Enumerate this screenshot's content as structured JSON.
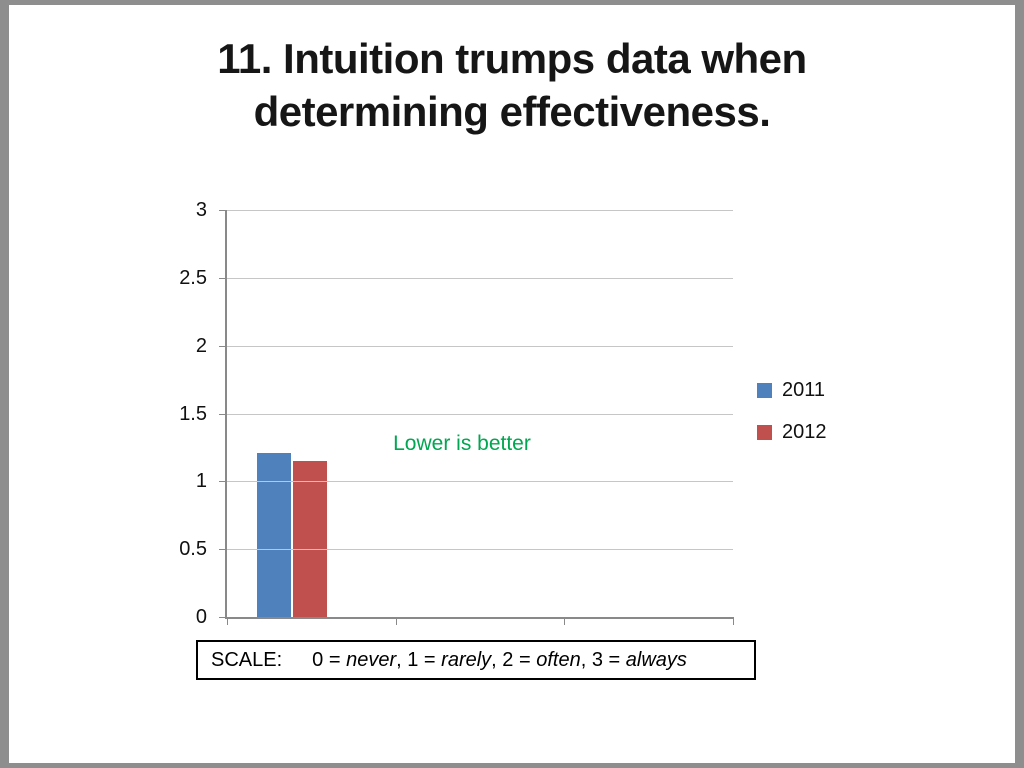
{
  "slide": {
    "title_line1": "11. Intuition trumps data when",
    "title_line2": "determining effectiveness."
  },
  "chart_data": {
    "type": "bar",
    "title": "",
    "categories": [
      ""
    ],
    "series": [
      {
        "name": "2011",
        "color": "#4F81BD",
        "values": [
          1.21
        ]
      },
      {
        "name": "2012",
        "color": "#C0504D",
        "values": [
          1.15
        ]
      }
    ],
    "ylim": [
      0,
      3
    ],
    "yticks": [
      0,
      0.5,
      1,
      1.5,
      2,
      2.5,
      3
    ],
    "grid": true,
    "legend_position": "right",
    "legend_labels": [
      "2011",
      "2012"
    ],
    "annotation": {
      "text": "Lower is better",
      "color": "#00A651"
    },
    "axis_color": "#898989",
    "gridline_color": "#C6C6C6"
  },
  "scale": {
    "label": "SCALE:",
    "parts": [
      {
        "plain": "0 = ",
        "italic": "never",
        "sep": ", "
      },
      {
        "plain": "1 = ",
        "italic": "rarely",
        "sep": ", "
      },
      {
        "plain": "2 = ",
        "italic": "often",
        "sep": ", "
      },
      {
        "plain": "3 = ",
        "italic": "always",
        "sep": ""
      }
    ]
  }
}
